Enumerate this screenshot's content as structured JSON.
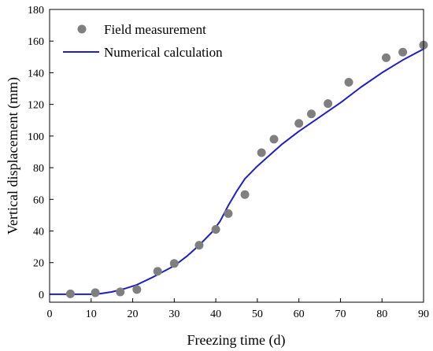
{
  "chart_data": {
    "type": "scatter",
    "xlabel": "Freezing time (d)",
    "ylabel": "Vertical displacement (mm)",
    "xlim": [
      0,
      90
    ],
    "ylim": [
      -5,
      180
    ],
    "xticks": [
      0,
      10,
      20,
      30,
      40,
      50,
      60,
      70,
      80,
      90
    ],
    "yticks": [
      0,
      20,
      40,
      60,
      80,
      100,
      120,
      140,
      160,
      180
    ],
    "grid": false,
    "legend_position": "top-left",
    "series": [
      {
        "name": "Field measurement",
        "type": "scatter",
        "color": "#7f7f7f",
        "x": [
          5,
          11,
          17,
          21,
          26,
          30,
          36,
          40,
          43,
          47,
          51,
          54,
          60,
          63,
          67,
          72,
          81,
          85,
          90
        ],
        "y": [
          0.3,
          1,
          1.5,
          3,
          14.5,
          19.5,
          31,
          41,
          51,
          63,
          89.5,
          98,
          108,
          114,
          120.5,
          134,
          149.5,
          153,
          157.5
        ]
      },
      {
        "name": "Numerical calculation",
        "type": "line",
        "color": "#1f1fc8",
        "x": [
          0,
          10,
          12,
          15,
          18,
          21,
          25,
          30,
          33,
          36,
          39,
          41,
          43,
          45,
          47,
          50,
          53,
          56,
          60,
          65,
          70,
          75,
          80,
          85,
          90
        ],
        "y": [
          0,
          0,
          0.3,
          1.5,
          3.5,
          6,
          11,
          18,
          24,
          31,
          39,
          46,
          56,
          65,
          73,
          81,
          88,
          95,
          103,
          112,
          121,
          131,
          140,
          148,
          155
        ]
      }
    ]
  }
}
